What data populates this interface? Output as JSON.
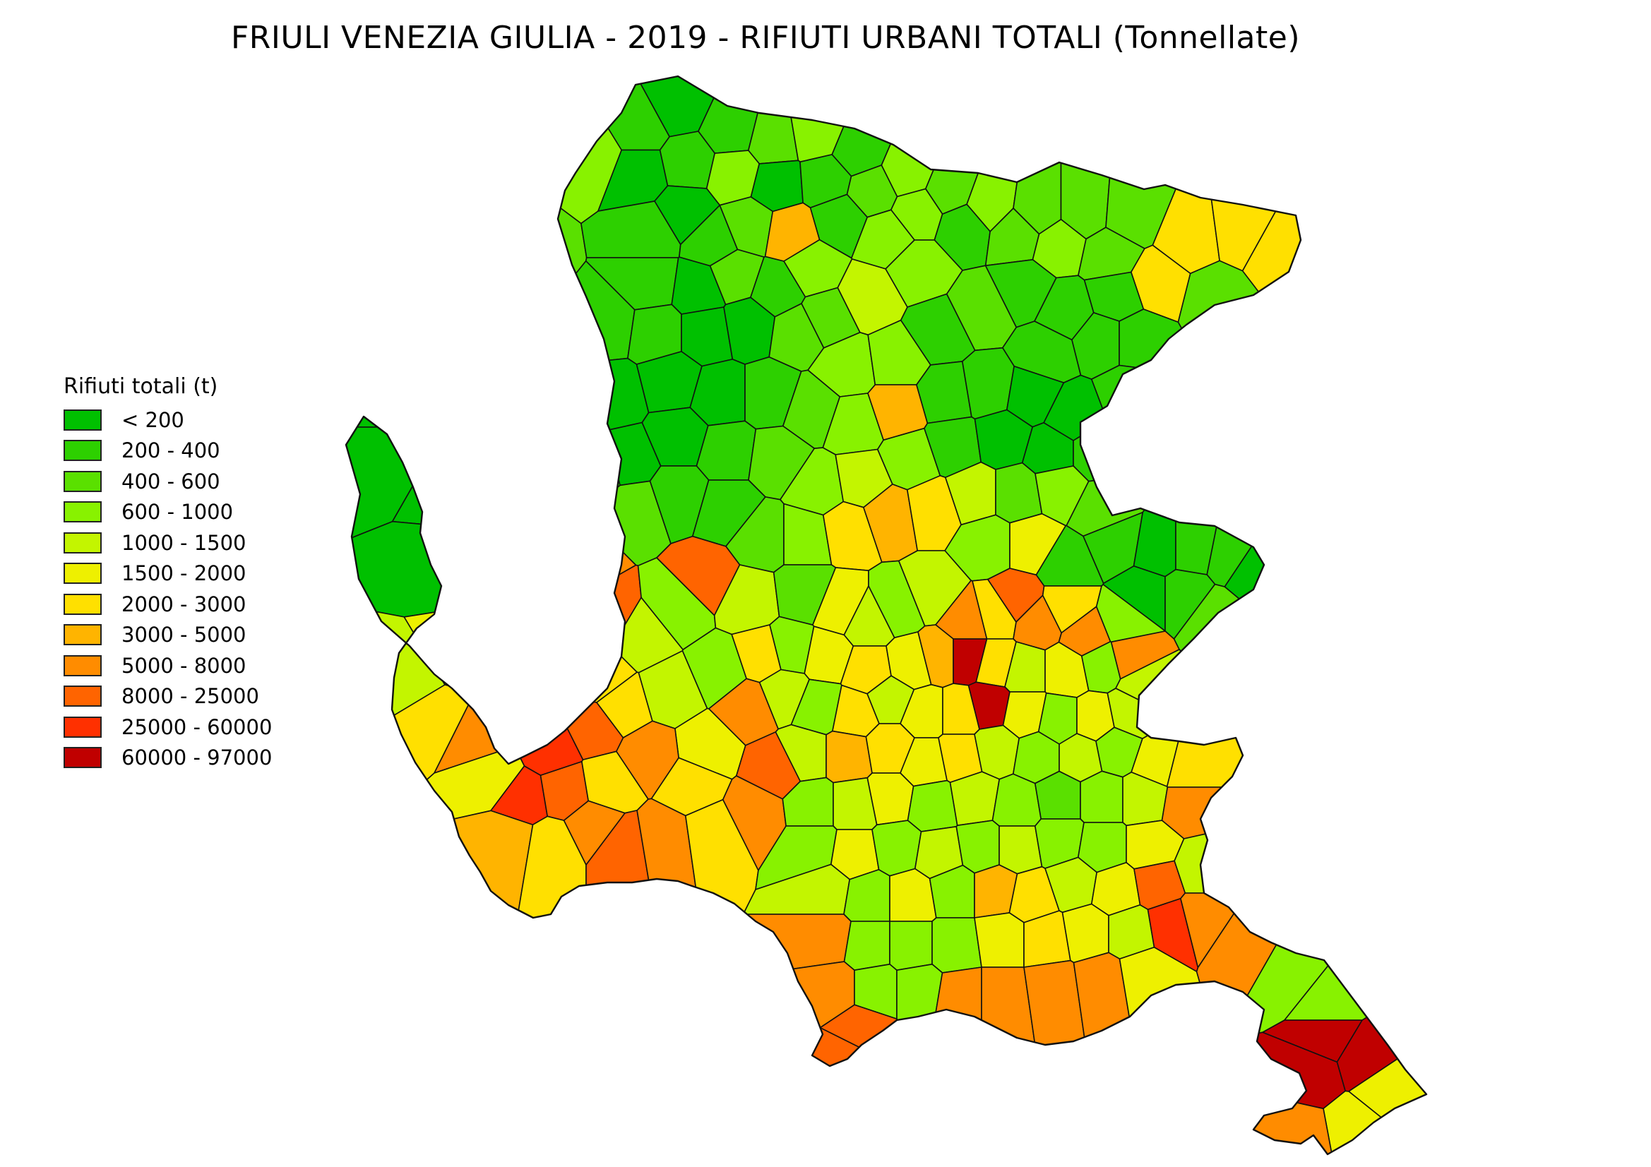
{
  "title": "FRIULI VENEZIA GIULIA - 2019 - RIFIUTI URBANI TOTALI (Tonnellate)",
  "legend": {
    "title": "Rifiuti totali (t)",
    "classes": [
      {
        "label": "< 200",
        "color": "#00c000"
      },
      {
        "label": "200 - 400",
        "color": "#2dd000"
      },
      {
        "label": "400 - 600",
        "color": "#5ae000"
      },
      {
        "label": "600 - 1000",
        "color": "#88f200"
      },
      {
        "label": "1000 - 1500",
        "color": "#c3f500"
      },
      {
        "label": "1500 - 2000",
        "color": "#eef000"
      },
      {
        "label": "2000 - 3000",
        "color": "#ffe000"
      },
      {
        "label": "3000 - 5000",
        "color": "#ffb400"
      },
      {
        "label": "5000 - 8000",
        "color": "#ff8c00"
      },
      {
        "label": "8000 - 25000",
        "color": "#ff6400"
      },
      {
        "label": "25000 - 60000",
        "color": "#ff3000"
      },
      {
        "label": "60000 - 97000",
        "color": "#c00000"
      }
    ]
  }
}
